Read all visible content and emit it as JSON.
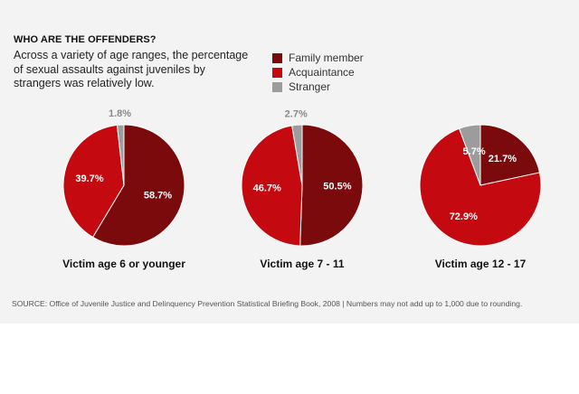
{
  "heading": "WHO ARE THE OFFENDERS?",
  "subtitle": "Across a variety of age ranges, the percentage of sexual assaults against juveniles by strangers was relatively low.",
  "source": "SOURCE: Office of Juvenile Justice and Delinquency Prevention Statistical Briefing Book, 2008 | Numbers may not add up to 1,000 due to rounding.",
  "colors": {
    "family": "#7a0a0c",
    "acquaintance": "#c40a10",
    "stranger": "#9c9c9c"
  },
  "chart_data": {
    "type": "pie",
    "series": [
      {
        "name": "Family member",
        "color": "#7a0a0c"
      },
      {
        "name": "Acquaintance",
        "color": "#c40a10"
      },
      {
        "name": "Stranger",
        "color": "#9c9c9c"
      }
    ],
    "legend_position": "top",
    "charts": [
      {
        "title": "Victim age 6 or younger",
        "values": [
          58.7,
          39.7,
          1.8
        ],
        "labels": [
          "58.7%",
          "39.7%",
          "1.8%"
        ]
      },
      {
        "title": "Victim age 7 - 11",
        "values": [
          50.5,
          46.7,
          2.7
        ],
        "labels": [
          "50.5%",
          "46.7%",
          "2.7%"
        ]
      },
      {
        "title": "Victim age 12 - 17",
        "values": [
          21.7,
          72.9,
          5.7
        ],
        "labels": [
          "21.7%",
          "72.9%",
          "5.7%"
        ]
      }
    ]
  }
}
